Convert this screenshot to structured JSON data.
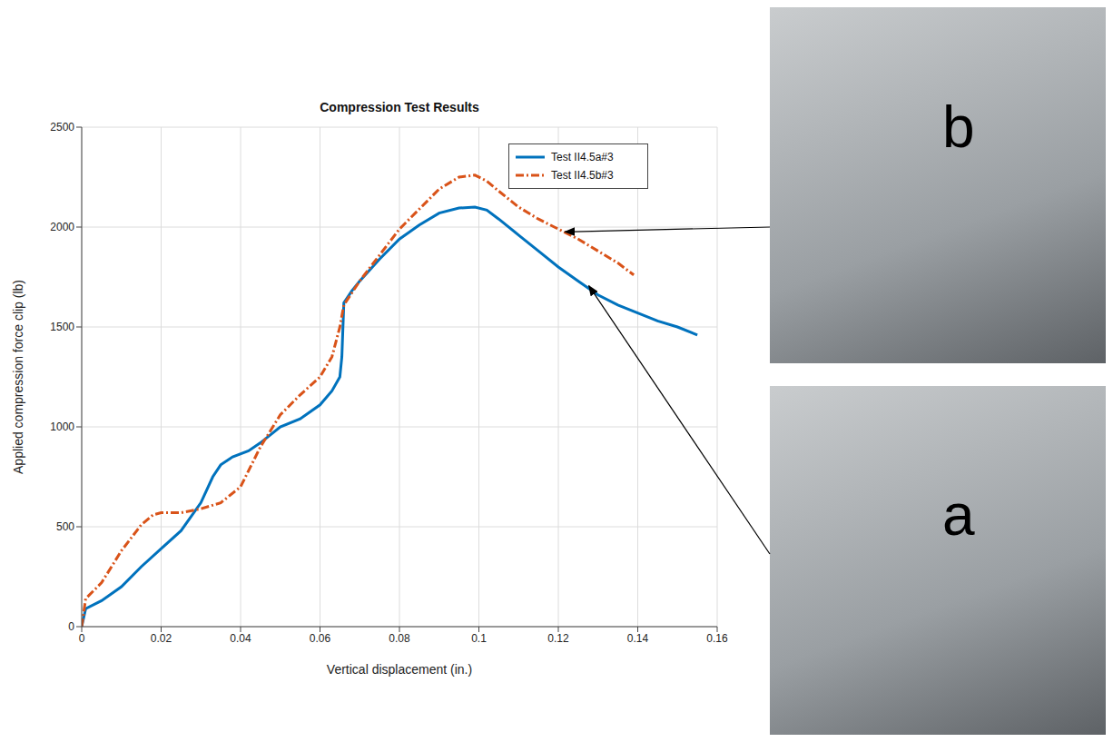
{
  "chart_data": {
    "type": "line",
    "title": "Compression Test Results",
    "x_label": "Vertical displacement (in.)",
    "y_label": "Applied compression force clip (lb)",
    "xlim": [
      0,
      0.16
    ],
    "xticks": [
      0,
      0.02,
      0.04,
      0.06,
      0.08,
      0.1,
      0.12,
      0.14,
      0.16
    ],
    "ylim": [
      0,
      2500
    ],
    "yticks": [
      0,
      500,
      1000,
      1500,
      2000,
      2500
    ],
    "grid": true,
    "legend": "northeast",
    "series": [
      {
        "name": "Test II4.5a#3",
        "color": "#0072BD",
        "line_style": "solid",
        "x": [
          0,
          0.001,
          0.005,
          0.01,
          0.015,
          0.02,
          0.025,
          0.03,
          0.033,
          0.035,
          0.038,
          0.042,
          0.045,
          0.05,
          0.055,
          0.06,
          0.063,
          0.065,
          0.0655,
          0.066,
          0.068,
          0.07,
          0.075,
          0.08,
          0.085,
          0.09,
          0.095,
          0.099,
          0.102,
          0.105,
          0.11,
          0.115,
          0.12,
          0.125,
          0.13,
          0.135,
          0.14,
          0.145,
          0.15,
          0.155
        ],
        "values": [
          0,
          90,
          130,
          200,
          300,
          390,
          480,
          620,
          750,
          810,
          850,
          880,
          920,
          1000,
          1040,
          1110,
          1180,
          1250,
          1350,
          1620,
          1680,
          1730,
          1840,
          1940,
          2010,
          2070,
          2095,
          2100,
          2085,
          2040,
          1960,
          1880,
          1800,
          1730,
          1660,
          1610,
          1570,
          1530,
          1500,
          1460
        ]
      },
      {
        "name": "Test II4.5b#3",
        "color": "#D95319",
        "line_style": "dashdot",
        "x": [
          0,
          0.001,
          0.005,
          0.01,
          0.015,
          0.018,
          0.02,
          0.025,
          0.03,
          0.035,
          0.04,
          0.045,
          0.05,
          0.055,
          0.06,
          0.063,
          0.065,
          0.066,
          0.07,
          0.075,
          0.08,
          0.085,
          0.09,
          0.095,
          0.099,
          0.102,
          0.105,
          0.11,
          0.115,
          0.12,
          0.125,
          0.13,
          0.135,
          0.139
        ],
        "values": [
          0,
          140,
          220,
          380,
          510,
          560,
          570,
          570,
          590,
          620,
          700,
          900,
          1060,
          1160,
          1250,
          1350,
          1500,
          1610,
          1730,
          1860,
          1990,
          2090,
          2190,
          2250,
          2260,
          2230,
          2180,
          2100,
          2040,
          1990,
          1940,
          1880,
          1820,
          1760
        ]
      }
    ],
    "annotations": [
      {
        "text": "b",
        "x": 0.121,
        "y": 1985
      },
      {
        "text": "a",
        "x": 0.127,
        "y": 1715
      }
    ]
  }
}
